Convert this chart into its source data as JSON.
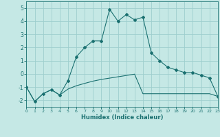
{
  "background_color": "#c5e8e5",
  "grid_color": "#9ecece",
  "line_color": "#1a7070",
  "xlabel": "Humidex (Indice chaleur)",
  "xlim": [
    0,
    23
  ],
  "ylim": [
    -2.5,
    5.5
  ],
  "yticks": [
    -2,
    -1,
    0,
    1,
    2,
    3,
    4,
    5
  ],
  "xticks": [
    0,
    1,
    2,
    3,
    4,
    5,
    6,
    7,
    8,
    9,
    10,
    11,
    12,
    13,
    14,
    15,
    16,
    17,
    18,
    19,
    20,
    21,
    22,
    23
  ],
  "curve1_x": [
    0,
    1,
    2,
    3,
    4,
    5,
    6,
    7,
    8,
    9,
    10,
    11,
    12,
    13,
    14,
    15,
    16,
    17,
    18,
    19,
    20,
    21,
    22,
    23
  ],
  "curve1_y": [
    -1.0,
    -2.1,
    -1.5,
    -1.2,
    -1.6,
    -0.5,
    1.3,
    2.0,
    2.5,
    2.5,
    4.9,
    4.0,
    4.5,
    4.1,
    4.3,
    1.6,
    1.0,
    0.5,
    0.3,
    0.1,
    0.1,
    -0.1,
    -0.3,
    -1.7
  ],
  "curve2_x": [
    0,
    1,
    2,
    3,
    4,
    5,
    6,
    7,
    8,
    9,
    10,
    11,
    12,
    13,
    14,
    15,
    16,
    17,
    18,
    19,
    20,
    21,
    22,
    23
  ],
  "curve2_y": [
    -1.0,
    -2.1,
    -1.5,
    -1.2,
    -1.6,
    -1.15,
    -0.9,
    -0.72,
    -0.55,
    -0.42,
    -0.32,
    -0.22,
    -0.12,
    -0.02,
    -1.5,
    -1.5,
    -1.5,
    -1.5,
    -1.5,
    -1.5,
    -1.5,
    -1.5,
    -1.5,
    -1.7
  ],
  "figsize": [
    3.2,
    2.0
  ],
  "dpi": 100
}
